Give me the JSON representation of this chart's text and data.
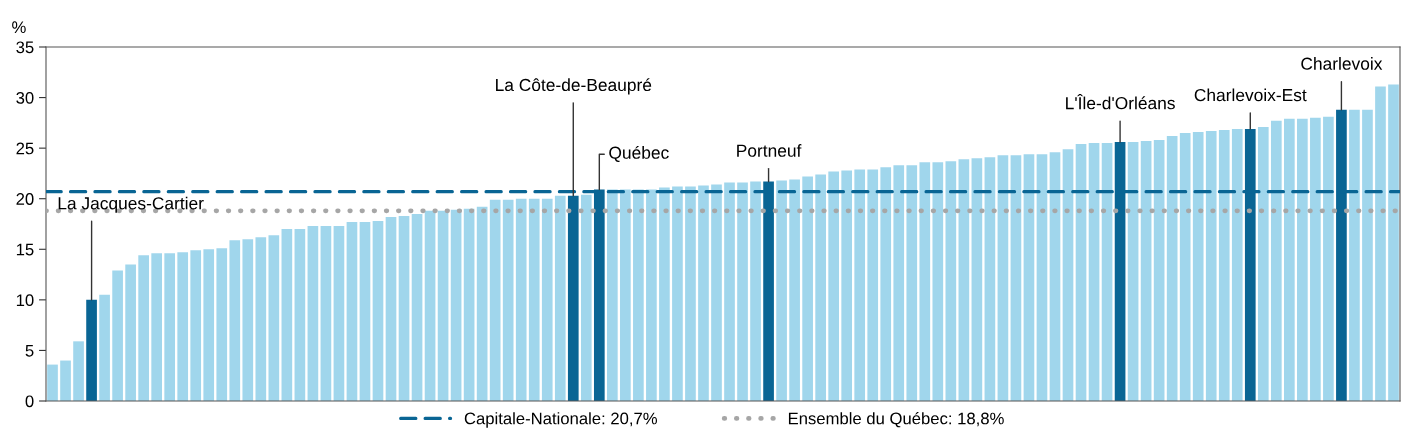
{
  "chart_data": {
    "type": "bar",
    "ylabel": "%",
    "categories": [
      null,
      null,
      null,
      null,
      null,
      null,
      null,
      null,
      null,
      null,
      null,
      null,
      null,
      null,
      null,
      null,
      null,
      null,
      null,
      null,
      null,
      null,
      null,
      null,
      null,
      null,
      null,
      null,
      null,
      null,
      null,
      null,
      null,
      null,
      null,
      null,
      null,
      null,
      null,
      null,
      null,
      null,
      null,
      null,
      null,
      null,
      null,
      null,
      null,
      null,
      null,
      null,
      null,
      null,
      null,
      null,
      null,
      null,
      null,
      null,
      null,
      null,
      null,
      null,
      null,
      null,
      null,
      null,
      null,
      null,
      null,
      null,
      null,
      null,
      null,
      null,
      null,
      null,
      null,
      null,
      null,
      null,
      null,
      null,
      null,
      null,
      null,
      null,
      null,
      null,
      null,
      null,
      null,
      null,
      null,
      null,
      null,
      null,
      null,
      null,
      null,
      null,
      null,
      null
    ],
    "annotations": [
      "La Jacques-Cartier",
      {
        "text": "La Côte-de-Beaupré",
        "y": 20.3
      },
      {
        "text": "Québec",
        "y": 20.9
      },
      {
        "text": "Portneuf",
        "y": 21.7
      },
      {
        "text": "L'Île-d'Orléans",
        "y": 25.6
      },
      {
        "text": "Charlevoix-Est",
        "y": 26.9
      },
      {
        "text": "Charlevoix",
        "y": 28.8
      }
    ],
    "values": [
      3.6,
      4.0,
      5.9,
      10.0,
      10.5,
      12.9,
      13.5,
      14.4,
      14.6,
      14.6,
      14.7,
      14.9,
      15.0,
      15.1,
      15.9,
      16.0,
      16.2,
      16.4,
      17.0,
      17.0,
      17.3,
      17.3,
      17.3,
      17.7,
      17.7,
      17.8,
      18.2,
      18.3,
      18.5,
      18.8,
      18.8,
      18.9,
      19.0,
      19.2,
      19.9,
      19.9,
      20.0,
      20.0,
      20.0,
      20.3,
      20.3,
      20.4,
      20.9,
      20.9,
      20.9,
      20.9,
      20.9,
      21.1,
      21.2,
      21.2,
      21.3,
      21.4,
      21.6,
      21.6,
      21.7,
      21.7,
      21.8,
      21.9,
      22.2,
      22.4,
      22.7,
      22.8,
      22.9,
      22.9,
      23.1,
      23.3,
      23.3,
      23.6,
      23.6,
      23.7,
      23.9,
      24.0,
      24.1,
      24.3,
      24.3,
      24.4,
      24.4,
      24.6,
      24.9,
      25.4,
      25.5,
      25.5,
      25.6,
      25.6,
      25.7,
      25.8,
      26.2,
      26.5,
      26.6,
      26.7,
      26.8,
      26.9,
      26.9,
      27.1,
      27.7,
      27.9,
      27.9,
      28.0,
      28.1,
      28.8,
      28.8,
      28.8,
      31.1,
      31.3
    ],
    "colors": [
      "#a0d6ec",
      "#a0d6ec",
      "#a0d6ec",
      "#096594",
      "#a0d6ec",
      "#a0d6ec",
      "#a0d6ec",
      "#a0d6ec",
      "#a0d6ec",
      "#a0d6ec",
      "#a0d6ec",
      "#a0d6ec",
      "#a0d6ec",
      "#a0d6ec",
      "#a0d6ec",
      "#a0d6ec",
      "#a0d6ec",
      "#a0d6ec",
      "#a0d6ec",
      "#a0d6ec",
      "#a0d6ec",
      "#a0d6ec",
      "#a0d6ec",
      "#a0d6ec",
      "#a0d6ec",
      "#a0d6ec",
      "#a0d6ec",
      "#a0d6ec",
      "#a0d6ec",
      "#a0d6ec",
      "#a0d6ec",
      "#a0d6ec",
      "#a0d6ec",
      "#a0d6ec",
      "#a0d6ec",
      "#a0d6ec",
      "#a0d6ec",
      "#a0d6ec",
      "#a0d6ec",
      "#a0d6ec",
      "#096594",
      "#a0d6ec",
      "#096594",
      "#a0d6ec",
      "#a0d6ec",
      "#a0d6ec",
      "#a0d6ec",
      "#a0d6ec",
      "#a0d6ec",
      "#a0d6ec",
      "#a0d6ec",
      "#a0d6ec",
      "#a0d6ec",
      "#a0d6ec",
      "#a0d6ec",
      "#096594",
      "#a0d6ec",
      "#a0d6ec",
      "#a0d6ec",
      "#a0d6ec",
      "#a0d6ec",
      "#a0d6ec",
      "#a0d6ec",
      "#a0d6ec",
      "#a0d6ec",
      "#a0d6ec",
      "#a0d6ec",
      "#a0d6ec",
      "#a0d6ec",
      "#a0d6ec",
      "#a0d6ec",
      "#a0d6ec",
      "#a0d6ec",
      "#a0d6ec",
      "#a0d6ec",
      "#a0d6ec",
      "#a0d6ec",
      "#a0d6ec",
      "#a0d6ec",
      "#a0d6ec",
      "#a0d6ec",
      "#a0d6ec",
      "#096594",
      "#a0d6ec",
      "#a0d6ec",
      "#a0d6ec",
      "#a0d6ec",
      "#a0d6ec",
      "#a0d6ec",
      "#a0d6ec",
      "#a0d6ec",
      "#a0d6ec",
      "#096594",
      "#a0d6ec",
      "#a0d6ec",
      "#a0d6ec",
      "#a0d6ec",
      "#a0d6ec",
      "#a0d6ec",
      "#096594",
      "#a0d6ec",
      "#a0d6ec",
      "#a0d6ec",
      "#a0d6ec"
    ],
    "ylim": [
      0,
      35
    ],
    "yticks": [
      0,
      5,
      10,
      15,
      20,
      25,
      30,
      35
    ],
    "grid": false,
    "legend": "bottom",
    "ref_lines": [
      {
        "axis": "y",
        "value": 20.7,
        "label": "Capitale-Nationale: 20,7%",
        "color": "#096594",
        "line_style": "dashed"
      },
      {
        "axis": "y",
        "value": 18.8,
        "label": "Ensemble du Québec: 18,8%",
        "color": "#a6a6a6",
        "line_style": "dotted"
      }
    ]
  }
}
